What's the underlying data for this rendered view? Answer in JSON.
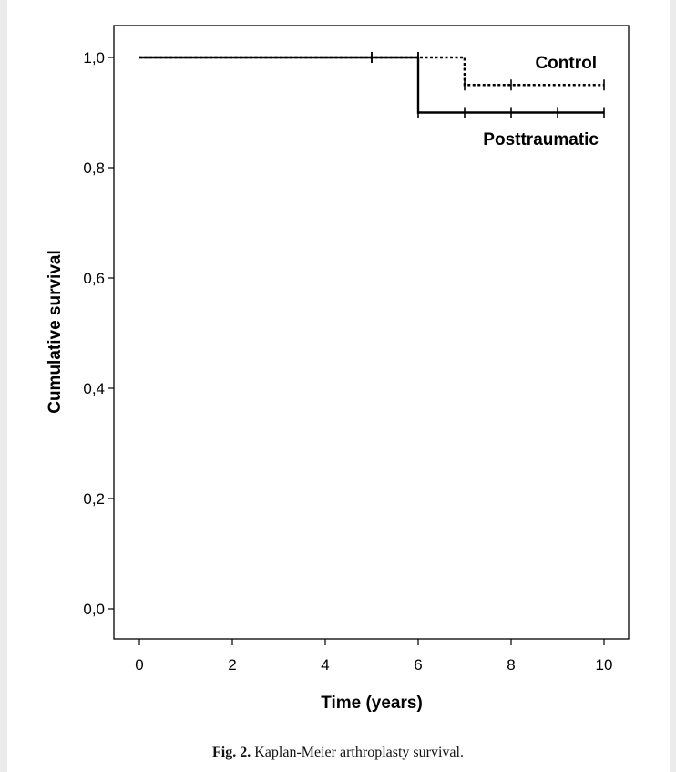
{
  "colors": {
    "page_background": "#ebebeb",
    "figure_background": "#ffffff",
    "line_color": "#000000"
  },
  "caption": {
    "label": "Fig. 2.",
    "text": " Kaplan-Meier arthroplasty survival."
  },
  "chart_data": {
    "type": "line",
    "subtype": "kaplan-meier step",
    "title": "",
    "xlabel": "Time (years)",
    "ylabel": "Cumulative survival",
    "xlim": [
      0,
      10
    ],
    "ylim": [
      0,
      1
    ],
    "x_ticks": [
      0,
      2,
      4,
      6,
      8,
      10
    ],
    "x_tick_labels": [
      "0",
      "2",
      "4",
      "6",
      "8",
      "10"
    ],
    "y_ticks": [
      0,
      0.2,
      0.4,
      0.6,
      0.8,
      1.0
    ],
    "y_tick_labels": [
      "0,0",
      "0,2",
      "0,4",
      "0,6",
      "0,8",
      "1,0"
    ],
    "grid": false,
    "series": [
      {
        "name": "Control",
        "style": "dotted",
        "steps": [
          [
            0,
            1.0
          ],
          [
            7,
            0.95
          ],
          [
            10,
            0.95
          ]
        ],
        "censored": [
          [
            5,
            1.0
          ],
          [
            6,
            1.0
          ],
          [
            7,
            0.95
          ],
          [
            8,
            0.95
          ],
          [
            10,
            0.95
          ]
        ]
      },
      {
        "name": "Posttraumatic",
        "style": "solid",
        "steps": [
          [
            0,
            1.0
          ],
          [
            6,
            0.9
          ],
          [
            10,
            0.9
          ]
        ],
        "censored": [
          [
            5,
            1.0
          ],
          [
            6,
            1.0
          ],
          [
            6,
            0.9
          ],
          [
            7,
            0.9
          ],
          [
            8,
            0.9
          ],
          [
            9,
            0.9
          ],
          [
            10,
            0.9
          ]
        ]
      }
    ]
  }
}
